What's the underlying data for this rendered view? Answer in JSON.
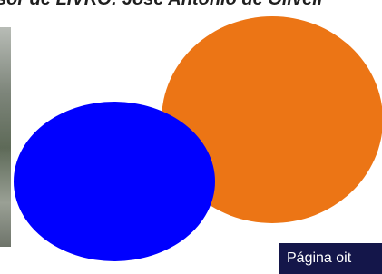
{
  "header": {
    "title": "sor de LIVRO: José Antonio de Oliveir"
  },
  "footer": {
    "page_label": "Página oit"
  }
}
